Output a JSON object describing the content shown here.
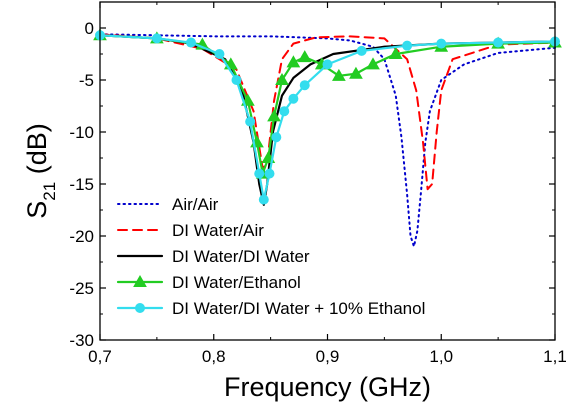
{
  "chart_data": {
    "type": "line",
    "title": "",
    "xlabel": "Frequency (GHz)",
    "ylabel_main": "S",
    "ylabel_sub": "21",
    "ylabel_unit": " (dB)",
    "xlim": [
      0.7,
      1.1
    ],
    "ylim": [
      -30,
      2.5
    ],
    "xticks": [
      0.7,
      0.8,
      0.9,
      1.0,
      1.1
    ],
    "xtick_labels": [
      "0,7",
      "0,8",
      "0,9",
      "1,0",
      "1,1"
    ],
    "yticks": [
      0,
      -5,
      -10,
      -15,
      -20,
      -25,
      -30
    ],
    "ytick_labels": [
      "0",
      "-5",
      "-10",
      "-15",
      "-20",
      "-25",
      "-30"
    ],
    "grid": false,
    "legend_position": "bottom-left",
    "series": [
      {
        "name": "Air/Air",
        "color": "#0000cc",
        "style": "dotted",
        "marker": "none",
        "x": [
          0.7,
          0.75,
          0.8,
          0.85,
          0.9,
          0.92,
          0.94,
          0.95,
          0.96,
          0.965,
          0.97,
          0.973,
          0.976,
          0.979,
          0.982,
          0.986,
          0.99,
          1.0,
          1.02,
          1.05,
          1.1
        ],
        "y": [
          -0.6,
          -0.7,
          -0.8,
          -0.8,
          -1.0,
          -1.2,
          -1.8,
          -3.0,
          -6.5,
          -10.5,
          -16.0,
          -20.0,
          -21.0,
          -19.5,
          -16.0,
          -11.0,
          -8.0,
          -5.0,
          -3.5,
          -2.4,
          -1.9
        ]
      },
      {
        "name": "DI Water/Air",
        "color": "#ff0000",
        "style": "dashed",
        "marker": "none",
        "x": [
          0.7,
          0.75,
          0.79,
          0.82,
          0.835,
          0.843,
          0.847,
          0.853,
          0.86,
          0.87,
          0.89,
          0.92,
          0.95,
          0.97,
          0.978,
          0.984,
          0.988,
          0.992,
          0.996,
          1.0,
          1.01,
          1.05,
          1.1
        ],
        "y": [
          -0.6,
          -1.0,
          -2.0,
          -4.0,
          -8.0,
          -13.5,
          -13.0,
          -7.0,
          -3.0,
          -1.5,
          -0.9,
          -0.8,
          -1.0,
          -3.0,
          -6.0,
          -11.0,
          -15.5,
          -15.0,
          -10.0,
          -6.0,
          -3.0,
          -1.6,
          -1.4
        ]
      },
      {
        "name": "DI Water/DI Water",
        "color": "#000000",
        "style": "solid",
        "marker": "none",
        "x": [
          0.7,
          0.75,
          0.78,
          0.81,
          0.825,
          0.835,
          0.84,
          0.844,
          0.847,
          0.852,
          0.86,
          0.87,
          0.885,
          0.905,
          0.95,
          1.0,
          1.05,
          1.1
        ],
        "y": [
          -0.7,
          -1.0,
          -1.5,
          -3.0,
          -6.0,
          -11.0,
          -15.0,
          -17.0,
          -15.0,
          -10.0,
          -6.5,
          -4.8,
          -3.5,
          -2.5,
          -1.8,
          -1.5,
          -1.4,
          -1.3
        ]
      },
      {
        "name": "DI Water/Ethanol",
        "color": "#22cc22",
        "style": "solid",
        "marker": "triangle",
        "x": [
          0.7,
          0.75,
          0.79,
          0.815,
          0.83,
          0.838,
          0.843,
          0.848,
          0.853,
          0.86,
          0.87,
          0.88,
          0.895,
          0.91,
          0.925,
          0.94,
          0.96,
          1.0,
          1.05,
          1.1
        ],
        "y": [
          -0.7,
          -1.0,
          -1.6,
          -3.5,
          -7.0,
          -11.0,
          -14.0,
          -12.5,
          -8.5,
          -5.0,
          -3.3,
          -2.8,
          -3.5,
          -4.6,
          -4.4,
          -3.5,
          -2.5,
          -1.8,
          -1.5,
          -1.4
        ]
      },
      {
        "name": "DI Water/DI Water + 10% Ethanol",
        "color": "#33ddee",
        "style": "solid",
        "marker": "circle",
        "x": [
          0.7,
          0.75,
          0.78,
          0.805,
          0.82,
          0.832,
          0.84,
          0.844,
          0.849,
          0.855,
          0.862,
          0.87,
          0.88,
          0.9,
          0.93,
          0.97,
          1.0,
          1.05,
          1.1
        ],
        "y": [
          -0.7,
          -1.0,
          -1.4,
          -2.5,
          -5.0,
          -9.0,
          -14.0,
          -16.5,
          -14.0,
          -10.5,
          -8.0,
          -6.8,
          -5.5,
          -3.5,
          -2.2,
          -1.7,
          -1.5,
          -1.4,
          -1.3
        ]
      }
    ]
  }
}
